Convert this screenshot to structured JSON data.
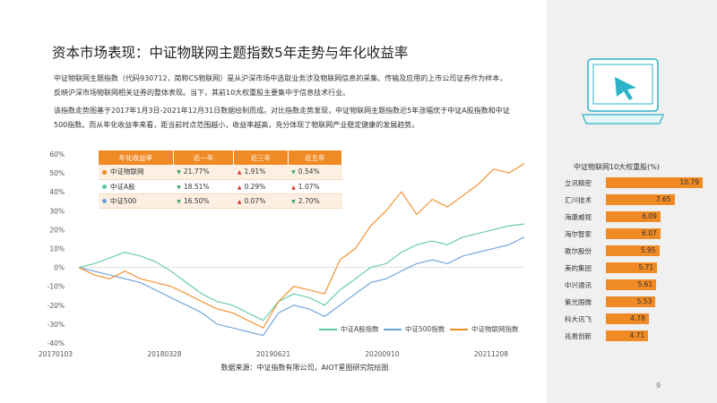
{
  "page": {
    "title": "资本市场表现：中证物联网主题指数5年走势与年化收益率",
    "paragraph1_line1": "中证物联网主题指数（代码930712，简称CS物联网）是从沪深市场中选取业务涉及物联网信息的采集、传输及应用的上市公司证券作为样本，",
    "paragraph1_line2": "反映沪深市场物联网相关证券的整体表现。当下，其前10大权重股主要集中于信息技术行业。",
    "paragraph2_line1": "该指数走势图基于2017年1月3日-2021年12月31日数据绘制而成。对比指数走势发现，中证物联网主题指数近5年涨幅优于中证A股指数和中证",
    "paragraph2_line2": "500指数。而从年化收益率来看，距当前时点范围越小，收益率越高，充分体现了物联网产业稳定健康的发展趋势。",
    "source": "数据来源：中证指数有限公司，AIOT星图研究院绘图",
    "page_number": "9"
  },
  "colors": {
    "accent_orange": "#f08a24",
    "series_iot": "#f08a24",
    "series_a": "#5cc8a0",
    "series_500": "#6a9fd8",
    "up_arrow": "#d9342b",
    "down_arrow": "#3ba55d",
    "icon_teal": "#2bb3c7"
  },
  "icon": {
    "name": "monitor-cursor-icon"
  },
  "return_table": {
    "headers": [
      "年化收益率",
      "近一年",
      "近三年",
      "近五年"
    ],
    "rows": [
      {
        "name": "中证物联网",
        "color": "#f08a24",
        "y1": "21.77%",
        "y1_dir": "down",
        "y3": "1.91%",
        "y3_dir": "up",
        "y5": "0.54%",
        "y5_dir": "down"
      },
      {
        "name": "中证A股",
        "color": "#5cc8a0",
        "y1": "18.51%",
        "y1_dir": "down",
        "y3": "0.29%",
        "y3_dir": "up",
        "y5": "1.07%",
        "y5_dir": "up"
      },
      {
        "name": "中证500",
        "color": "#6a9fd8",
        "y1": "16.50%",
        "y1_dir": "down",
        "y3": "0.07%",
        "y3_dir": "up",
        "y5": "2.70%",
        "y5_dir": "down"
      }
    ]
  },
  "chart_data": [
    {
      "type": "line",
      "title": "",
      "xlabel": "",
      "ylabel": "",
      "x_tick_labels": [
        "20170103",
        "20180328",
        "20190621",
        "20200910",
        "20211208"
      ],
      "y_tick_labels": [
        "-40%",
        "-30%",
        "-20%",
        "-10%",
        "0%",
        "10%",
        "20%",
        "30%",
        "40%",
        "50%",
        "60%"
      ],
      "ylim": [
        -40,
        60
      ],
      "legend_position": "bottom",
      "series": [
        {
          "name": "中证A股指数",
          "color": "#5cc8a0",
          "values": [
            0,
            2,
            5,
            8,
            6,
            3,
            -2,
            -8,
            -14,
            -18,
            -20,
            -24,
            -28,
            -18,
            -14,
            -16,
            -20,
            -12,
            -6,
            0,
            2,
            8,
            12,
            14,
            12,
            16,
            18,
            20,
            22,
            23
          ]
        },
        {
          "name": "中证500指数",
          "color": "#6a9fd8",
          "values": [
            0,
            -2,
            -4,
            -6,
            -8,
            -12,
            -16,
            -20,
            -24,
            -30,
            -32,
            -34,
            -36,
            -24,
            -20,
            -22,
            -26,
            -20,
            -14,
            -8,
            -6,
            -2,
            2,
            4,
            2,
            6,
            8,
            10,
            12,
            16
          ]
        },
        {
          "name": "中证物联网指数",
          "color": "#f08a24",
          "values": [
            0,
            -4,
            -6,
            -2,
            -6,
            -8,
            -10,
            -14,
            -18,
            -22,
            -24,
            -28,
            -32,
            -18,
            -10,
            -12,
            -14,
            4,
            10,
            22,
            30,
            40,
            28,
            36,
            32,
            38,
            44,
            52,
            50,
            55
          ]
        }
      ]
    },
    {
      "type": "bar",
      "title": "中证物联网10大权重股(%)",
      "categories": [
        "立讯精密",
        "汇川技术",
        "海康威视",
        "海尔智家",
        "歌尔股份",
        "美的集团",
        "中兴通讯",
        "紫光国微",
        "科大讯飞",
        "兆易创新"
      ],
      "values": [
        10.79,
        7.65,
        6.09,
        6.07,
        5.95,
        5.71,
        5.61,
        5.53,
        4.78,
        4.71
      ],
      "value_labels": [
        "10.79",
        "7.65",
        "6.09",
        "6.07",
        "5.95",
        "5.71",
        "5.61",
        "5.53",
        "4.78",
        "4.71"
      ]
    }
  ]
}
